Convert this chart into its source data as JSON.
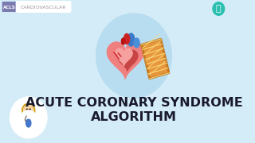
{
  "bg_color": "#d4ecf7",
  "title_line1": "ACUTE CORONARY SYNDROME",
  "title_line2": "ALGORITHM",
  "title_color": "#1a1a2e",
  "title_fontsize": 11.5,
  "title_fontweight": "black",
  "tag_label": "CARDIOVASCULAR",
  "tag_text_color": "#999999",
  "tag_fontsize": 4.5,
  "acls_bg": "#7b7bb0",
  "acls_text": "ACLS",
  "acls_fontsize": 4.0,
  "icon_circle_color": "#b8ddf0",
  "heart_color": "#f08080",
  "heart_dark": "#c94444",
  "vessel_outer": "#e8963c",
  "vessel_inner": "#c47820",
  "vessel_highlight": "#f8e080",
  "copyright_color": "#2bbfb0"
}
